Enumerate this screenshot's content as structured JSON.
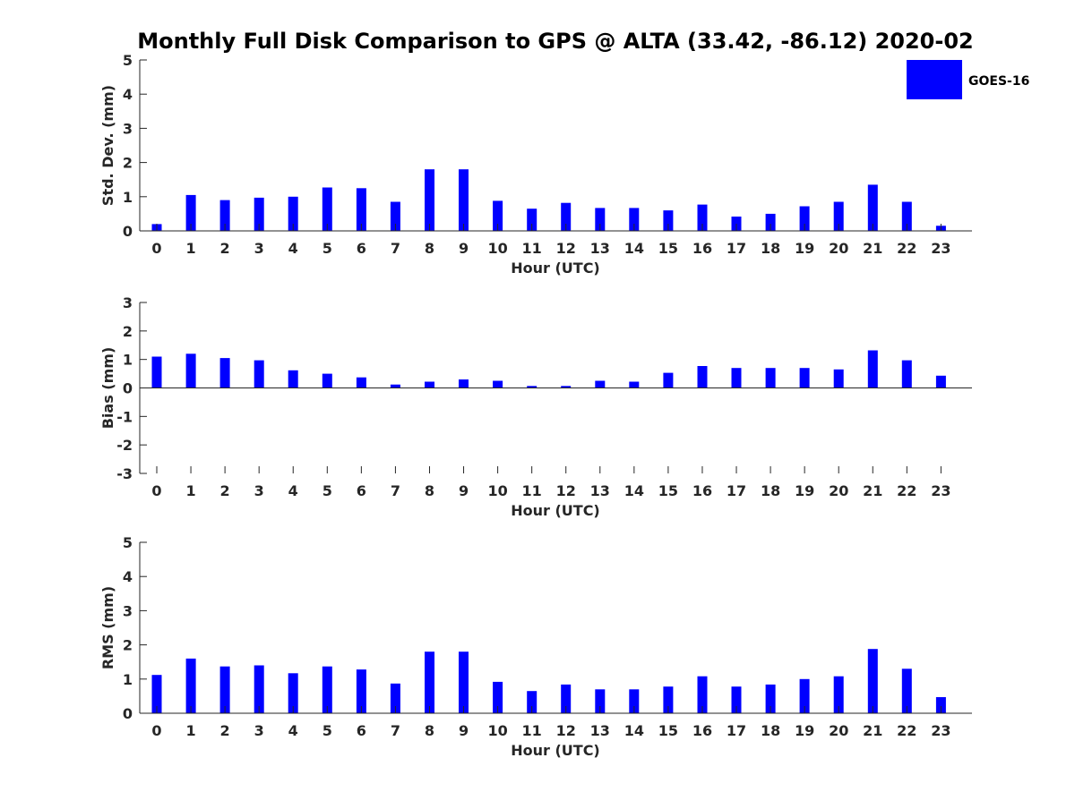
{
  "chart_data": {
    "type": "bar",
    "title": "Monthly Full Disk Comparison to GPS @ ALTA (33.42, -86.12) 2020-02",
    "legend": {
      "label": "GOES-16",
      "position": "top-right",
      "color": "#0000ff"
    },
    "bar_color": "#0000ff",
    "categories": [
      "0",
      "1",
      "2",
      "3",
      "4",
      "5",
      "6",
      "7",
      "8",
      "9",
      "10",
      "11",
      "12",
      "13",
      "14",
      "15",
      "16",
      "17",
      "18",
      "19",
      "20",
      "21",
      "22",
      "23"
    ],
    "panels": [
      {
        "xlabel": "Hour (UTC)",
        "ylabel": "Std. Dev. (mm)",
        "ylim": [
          0,
          5
        ],
        "yticks": [
          "0",
          "1",
          "2",
          "3",
          "4",
          "5"
        ],
        "series": [
          {
            "name": "GOES-16",
            "values": [
              0.2,
              1.05,
              0.9,
              0.97,
              1.0,
              1.27,
              1.25,
              0.85,
              1.8,
              1.8,
              0.88,
              0.65,
              0.82,
              0.67,
              0.67,
              0.6,
              0.77,
              0.42,
              0.5,
              0.72,
              0.85,
              1.35,
              0.85,
              0.15
            ]
          }
        ]
      },
      {
        "xlabel": "Hour (UTC)",
        "ylabel": "Bias (mm)",
        "ylim": [
          -3,
          3
        ],
        "yticks": [
          "-3",
          "-2",
          "-1",
          "0",
          "1",
          "2",
          "3"
        ],
        "series": [
          {
            "name": "GOES-16",
            "values": [
              1.1,
              1.2,
              1.05,
              0.97,
              0.62,
              0.5,
              0.37,
              0.12,
              0.22,
              0.3,
              0.25,
              0.07,
              0.07,
              0.25,
              0.22,
              0.53,
              0.77,
              0.7,
              0.7,
              0.7,
              0.65,
              1.32,
              0.97,
              0.43
            ]
          }
        ]
      },
      {
        "xlabel": "Hour (UTC)",
        "ylabel": "RMS (mm)",
        "ylim": [
          0,
          5
        ],
        "yticks": [
          "0",
          "1",
          "2",
          "3",
          "4",
          "5"
        ],
        "series": [
          {
            "name": "GOES-16",
            "values": [
              1.12,
              1.6,
              1.37,
              1.4,
              1.17,
              1.37,
              1.28,
              0.87,
              1.8,
              1.8,
              0.92,
              0.65,
              0.84,
              0.7,
              0.7,
              0.78,
              1.08,
              0.78,
              0.84,
              1.0,
              1.08,
              1.88,
              1.3,
              0.47
            ]
          }
        ]
      }
    ]
  }
}
